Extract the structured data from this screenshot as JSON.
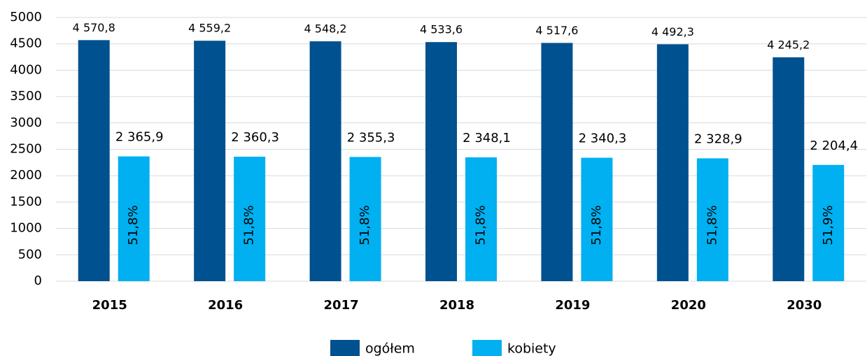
{
  "chart_data": {
    "type": "bar",
    "categories": [
      "2015",
      "2016",
      "2017",
      "2018",
      "2019",
      "2020",
      "2030"
    ],
    "series": [
      {
        "name": "ogółem",
        "color": "#00518f",
        "values": [
          4570.8,
          4559.2,
          4548.2,
          4533.6,
          4517.6,
          4492.3,
          4245.2
        ],
        "value_labels": [
          "4 570,8",
          "4 559,2",
          "4 548,2",
          "4 533,6",
          "4 517,6",
          "4 492,3",
          "4 245,2"
        ]
      },
      {
        "name": "kobiety",
        "color": "#00b0f0",
        "values": [
          2365.9,
          2360.3,
          2355.3,
          2348.1,
          2340.3,
          2328.9,
          2204.4
        ],
        "value_labels": [
          "2 365,9",
          "2 360,3",
          "2 355,3",
          "2 348,1",
          "2 340,3",
          "2 328,9",
          "2 204,4"
        ],
        "shares": [
          51.8,
          51.8,
          51.8,
          51.8,
          51.8,
          51.8,
          51.9
        ],
        "share_labels": [
          "51,8%",
          "51,8%",
          "51,8%",
          "51,8%",
          "51,8%",
          "51,8%",
          "51,9%"
        ]
      }
    ],
    "ylim": [
      0,
      5000
    ],
    "yticks": [
      0,
      500,
      1000,
      1500,
      2000,
      2500,
      3000,
      3500,
      4000,
      4500,
      5000
    ],
    "grid": true,
    "legend": "bottom"
  }
}
